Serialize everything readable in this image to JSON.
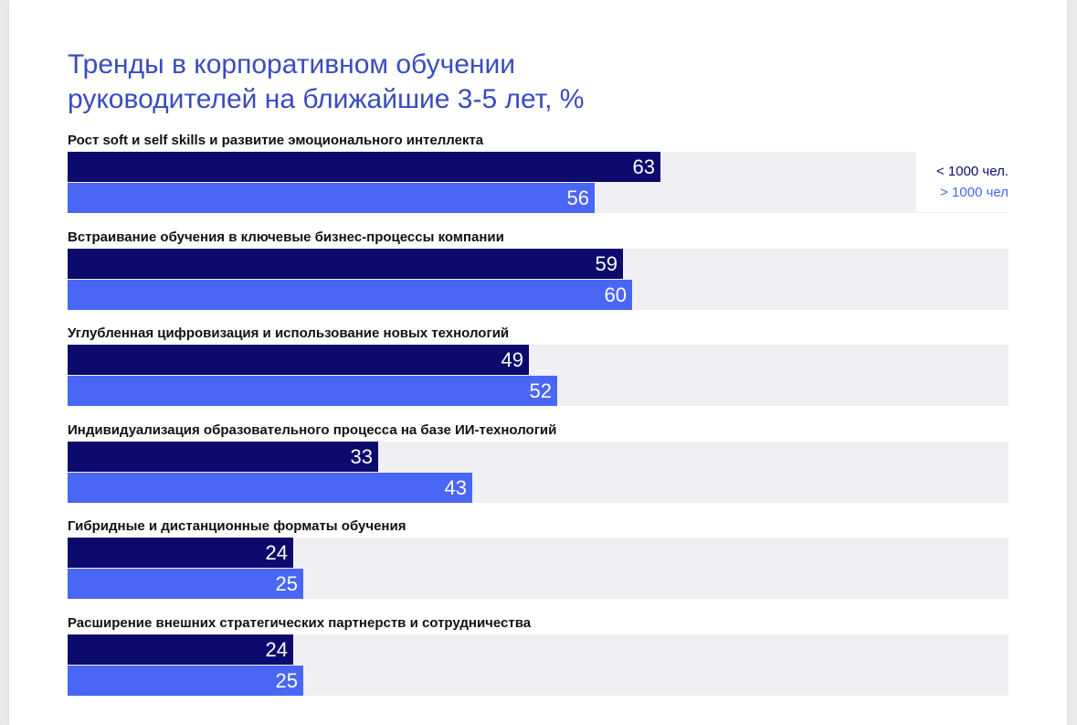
{
  "chart_data": {
    "type": "bar",
    "orientation": "horizontal",
    "title": [
      "Тренды в корпоративном обучении",
      "руководителей на ближайшие 3-5 лет, %"
    ],
    "categories": [
      "Рост soft и self skills и развитие эмоционального интеллекта",
      "Встраивание обучения в ключевые бизнес-процессы компании",
      "Углубленная цифровизация и использование новых технологий",
      "Индивидуализация образовательного процесса на базе ИИ-технологий",
      "Гибридные и дистанционные форматы обучения",
      "Расширение внешних стратегических партнерств и сотрудничества"
    ],
    "series": [
      {
        "name": "< 1000 чел.",
        "color": "#0d0a6e",
        "values": [
          63,
          59,
          49,
          33,
          24,
          24
        ]
      },
      {
        "name": "> 1000 чел",
        "color": "#4a66f5",
        "values": [
          56,
          60,
          52,
          43,
          25,
          25
        ]
      }
    ],
    "xlim": [
      0,
      100
    ],
    "legend_position": "top-right",
    "xlabel": "",
    "ylabel": ""
  },
  "colors": {
    "track": "#f0f0f4",
    "title": "#3b4bc0"
  }
}
